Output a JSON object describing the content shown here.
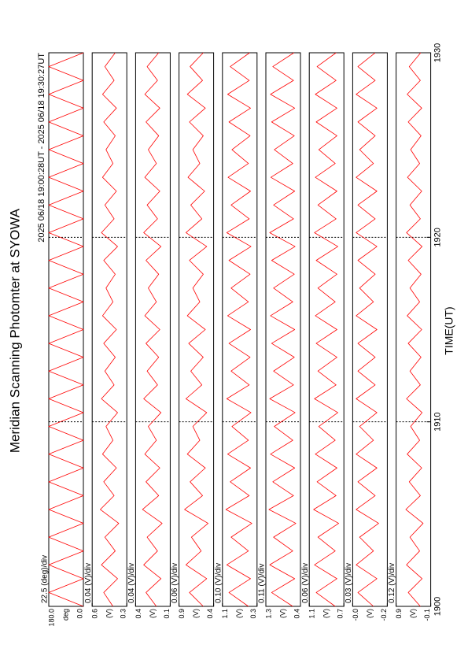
{
  "chart_data": {
    "type": "line",
    "title": "Meridian Scanning Photomter at SYOWA",
    "period": "2025 06/18 19:00:28UT - 2025 06/18 19:30:27UT",
    "xlabel": "TIME(UT)",
    "xlim": [
      1900,
      1930
    ],
    "xticks": [
      1900,
      1910,
      1920,
      1930
    ],
    "grid": true,
    "x": [
      1900,
      1900.75,
      1901.5,
      1902.25,
      1903,
      1903.75,
      1904.5,
      1905.25,
      1906,
      1906.75,
      1907.5,
      1908.25,
      1909,
      1909.75,
      1910.5,
      1911.25,
      1912,
      1912.75,
      1913.5,
      1914.25,
      1915,
      1915.75,
      1916.5,
      1917.25,
      1918,
      1918.75,
      1919.5,
      1920.25,
      1921,
      1921.75,
      1922.5,
      1923.25,
      1924,
      1924.75,
      1925.5,
      1926.25,
      1927,
      1927.75,
      1928.5,
      1929.25,
      1930
    ],
    "panels": [
      {
        "scale": "22.5 (deg)/div",
        "ylabel": "deg",
        "color": "#ff0000",
        "ylim": [
          0,
          180
        ],
        "yticks": [
          {
            "value": 0,
            "label": "0.0"
          },
          {
            "value": 180,
            "label": "180.0"
          }
        ],
        "values": [
          0,
          180,
          0,
          180,
          0,
          180,
          0,
          180,
          0,
          180,
          0,
          180,
          0,
          180,
          0,
          180,
          0,
          180,
          0,
          180,
          0,
          180,
          0,
          180,
          0,
          180,
          0,
          180,
          0,
          180,
          0,
          180,
          0,
          180,
          0,
          180,
          0,
          180,
          0,
          180,
          0
        ]
      },
      {
        "scale": "0.04 (V)/div",
        "ylabel": "(V)",
        "color": "#ff0000",
        "ylim": [
          0.3,
          0.6
        ],
        "yticks": [
          0.3,
          0.6
        ],
        "values": [
          0.42,
          0.5,
          0.38,
          0.52,
          0.4,
          0.49,
          0.37,
          0.53,
          0.41,
          0.5,
          0.39,
          0.51,
          0.42,
          0.48,
          0.38,
          0.52,
          0.41,
          0.49,
          0.4,
          0.5,
          0.39,
          0.51,
          0.42,
          0.48,
          0.4,
          0.5,
          0.38,
          0.52,
          0.41,
          0.49,
          0.39,
          0.51,
          0.42,
          0.48,
          0.4,
          0.5,
          0.39,
          0.51,
          0.41,
          0.49,
          0.4
        ]
      },
      {
        "scale": "0.04 (V)/div",
        "ylabel": "(V)",
        "color": "#ff0000",
        "ylim": [
          0.1,
          0.4
        ],
        "yticks": [
          0.1,
          0.4
        ],
        "values": [
          0.22,
          0.31,
          0.18,
          0.33,
          0.21,
          0.3,
          0.17,
          0.34,
          0.2,
          0.31,
          0.19,
          0.32,
          0.22,
          0.29,
          0.18,
          0.33,
          0.21,
          0.3,
          0.2,
          0.31,
          0.19,
          0.32,
          0.22,
          0.29,
          0.2,
          0.31,
          0.18,
          0.33,
          0.21,
          0.3,
          0.19,
          0.32,
          0.22,
          0.29,
          0.2,
          0.31,
          0.19,
          0.32,
          0.21,
          0.3,
          0.2
        ]
      },
      {
        "scale": "0.06 (V)/div",
        "ylabel": "(V)",
        "color": "#ff0000",
        "ylim": [
          0.4,
          0.9
        ],
        "yticks": [
          0.4,
          0.9
        ],
        "values": [
          0.55,
          0.75,
          0.5,
          0.8,
          0.58,
          0.72,
          0.48,
          0.82,
          0.56,
          0.74,
          0.52,
          0.78,
          0.6,
          0.7,
          0.5,
          0.8,
          0.57,
          0.73,
          0.55,
          0.76,
          0.52,
          0.78,
          0.6,
          0.7,
          0.55,
          0.75,
          0.5,
          0.8,
          0.57,
          0.73,
          0.53,
          0.77,
          0.6,
          0.7,
          0.55,
          0.75,
          0.52,
          0.78,
          0.56,
          0.74,
          0.55
        ]
      },
      {
        "scale": "0.10 (V)/div",
        "ylabel": "(V)",
        "color": "#ff0000",
        "ylim": [
          0.3,
          1.1
        ],
        "yticks": [
          0.3,
          1.1
        ],
        "values": [
          0.5,
          0.95,
          0.45,
          1.0,
          0.5,
          0.9,
          0.42,
          1.02,
          0.48,
          0.92,
          0.45,
          0.98,
          0.5,
          0.88,
          0.44,
          1.0,
          0.48,
          0.9,
          0.46,
          0.95,
          0.45,
          0.98,
          0.5,
          0.9,
          0.46,
          0.95,
          0.44,
          1.0,
          0.48,
          0.9,
          0.45,
          0.97,
          0.5,
          0.88,
          0.46,
          0.95,
          0.45,
          0.98,
          0.48,
          0.92,
          0.47
        ]
      },
      {
        "scale": "0.11 (V)/div",
        "ylabel": "(V)",
        "color": "#ff0000",
        "ylim": [
          0.4,
          1.3
        ],
        "yticks": [
          0.4,
          1.3
        ],
        "values": [
          0.6,
          1.15,
          0.55,
          1.2,
          0.6,
          1.1,
          0.52,
          1.22,
          0.58,
          1.12,
          0.55,
          1.18,
          0.6,
          1.08,
          0.54,
          1.2,
          0.58,
          1.1,
          0.56,
          1.15,
          0.55,
          1.18,
          0.6,
          1.1,
          0.56,
          1.15,
          0.54,
          1.2,
          0.58,
          1.1,
          0.55,
          1.17,
          0.6,
          1.08,
          0.56,
          1.15,
          0.55,
          1.18,
          0.58,
          1.12,
          0.57
        ]
      },
      {
        "scale": "0.06 (V)/div",
        "ylabel": "(V)",
        "color": "#ff0000",
        "ylim": [
          0.7,
          1.1
        ],
        "yticks": [
          0.7,
          1.1
        ],
        "values": [
          0.8,
          1.02,
          0.78,
          1.04,
          0.8,
          1.0,
          0.76,
          1.05,
          0.79,
          1.01,
          0.78,
          1.03,
          0.8,
          0.99,
          0.77,
          1.04,
          0.79,
          1.0,
          0.78,
          1.02,
          0.78,
          1.03,
          0.8,
          1.0,
          0.78,
          1.02,
          0.77,
          1.04,
          0.79,
          1.0,
          0.78,
          1.03,
          0.8,
          0.99,
          0.78,
          1.02,
          0.78,
          1.03,
          0.79,
          1.01,
          0.79
        ]
      },
      {
        "scale": "0.03 (V)/div",
        "ylabel": "(V)",
        "color": "#ff0000",
        "ylim": [
          -0.2,
          0
        ],
        "yticks": [
          -0.2,
          {
            "value": 0,
            "label": "-0.0"
          }
        ],
        "values": [
          -0.12,
          -0.03,
          -0.14,
          -0.02,
          -0.12,
          -0.04,
          -0.15,
          -0.02,
          -0.13,
          -0.03,
          -0.14,
          -0.02,
          -0.12,
          -0.04,
          -0.14,
          -0.02,
          -0.13,
          -0.03,
          -0.13,
          -0.03,
          -0.14,
          -0.02,
          -0.12,
          -0.04,
          -0.13,
          -0.03,
          -0.14,
          -0.02,
          -0.13,
          -0.03,
          -0.14,
          -0.02,
          -0.12,
          -0.04,
          -0.13,
          -0.03,
          -0.14,
          -0.02,
          -0.13,
          -0.03,
          -0.13
        ]
      },
      {
        "scale": "0.12 (V)/div",
        "ylabel": "(V)",
        "color": "#ff0000",
        "ylim": [
          -0.1,
          0.9
        ],
        "yticks": [
          -0.1,
          0.9
        ],
        "values": [
          0.2,
          0.55,
          0.15,
          0.6,
          0.22,
          0.5,
          0.12,
          0.62,
          0.2,
          0.52,
          0.16,
          0.58,
          0.22,
          0.48,
          0.15,
          0.6,
          0.2,
          0.5,
          0.18,
          0.55,
          0.16,
          0.58,
          0.22,
          0.5,
          0.18,
          0.55,
          0.15,
          0.6,
          0.2,
          0.5,
          0.16,
          0.57,
          0.22,
          0.48,
          0.18,
          0.55,
          0.16,
          0.58,
          0.2,
          0.52,
          0.19
        ]
      }
    ]
  }
}
